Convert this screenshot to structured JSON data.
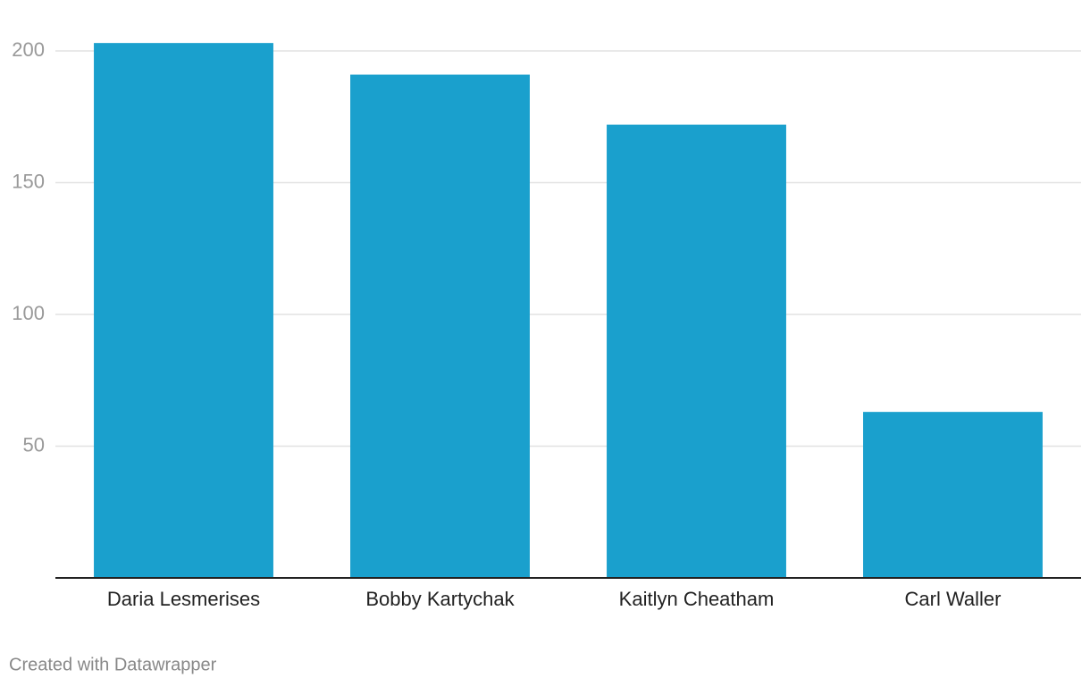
{
  "chart_data": {
    "type": "bar",
    "categories": [
      "Daria Lesmerises",
      "Bobby Kartychak",
      "Kaitlyn Cheatham",
      "Carl Waller"
    ],
    "values": [
      203,
      191,
      172,
      63
    ],
    "color": "#1aa0cd",
    "ylim": [
      0,
      205
    ],
    "yticks": [
      50,
      100,
      150,
      200
    ],
    "grid": true,
    "credit": "Created with Datawrapper"
  }
}
